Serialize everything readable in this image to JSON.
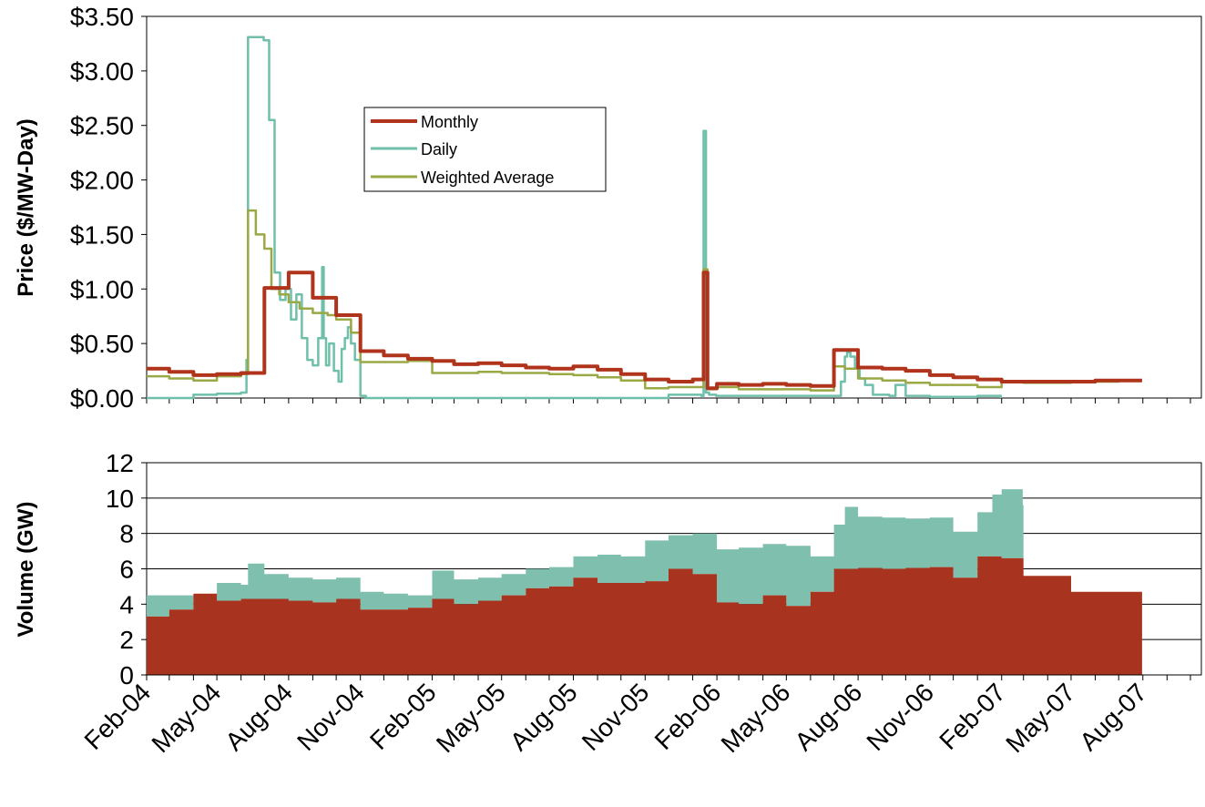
{
  "chart_data": [
    {
      "type": "line",
      "title": "",
      "xlabel": "",
      "ylabel": "Price ($/MW-Day)",
      "ylim": [
        0,
        3.5
      ],
      "yticks": [
        "$0.00",
        "$0.50",
        "$1.00",
        "$1.50",
        "$2.00",
        "$2.50",
        "$3.00",
        "$3.50"
      ],
      "xlim": [
        "2004-02-01",
        "2007-10-15"
      ],
      "grid": false,
      "legend": "upper-left-inside",
      "colors": {
        "Monthly": "#b0341c",
        "Daily": "#6fbfaa",
        "Weighted Average": "#9aa846"
      },
      "series": [
        {
          "name": "Monthly",
          "x": [
            "2004-02-01",
            "2004-03-01",
            "2004-04-01",
            "2004-05-01",
            "2004-06-01",
            "2004-07-01",
            "2004-08-01",
            "2004-09-01",
            "2004-10-01",
            "2004-11-01",
            "2004-12-01",
            "2005-01-01",
            "2005-02-01",
            "2005-03-01",
            "2005-04-01",
            "2005-05-01",
            "2005-06-01",
            "2005-07-01",
            "2005-08-01",
            "2005-09-01",
            "2005-10-01",
            "2005-11-01",
            "2005-12-01",
            "2006-01-01",
            "2006-01-15",
            "2006-01-20",
            "2006-02-01",
            "2006-03-01",
            "2006-04-01",
            "2006-05-01",
            "2006-06-01",
            "2006-07-01",
            "2006-08-01",
            "2006-09-01",
            "2006-10-01",
            "2006-11-01",
            "2006-12-01",
            "2007-01-01",
            "2007-02-01",
            "2007-03-01",
            "2007-04-01",
            "2007-05-01",
            "2007-06-01",
            "2007-07-01",
            "2007-07-31"
          ],
          "values": [
            0.27,
            0.24,
            0.21,
            0.22,
            0.23,
            1.01,
            1.15,
            0.92,
            0.76,
            0.43,
            0.39,
            0.36,
            0.34,
            0.31,
            0.32,
            0.3,
            0.28,
            0.27,
            0.29,
            0.26,
            0.22,
            0.17,
            0.15,
            0.17,
            1.15,
            0.09,
            0.13,
            0.12,
            0.13,
            0.12,
            0.11,
            0.44,
            0.28,
            0.27,
            0.25,
            0.21,
            0.19,
            0.17,
            0.15,
            0.15,
            0.15,
            0.15,
            0.16,
            0.16,
            0.16
          ]
        },
        {
          "name": "Daily",
          "x": [
            "2004-02-01",
            "2004-03-01",
            "2004-04-01",
            "2004-05-01",
            "2004-06-01",
            "2004-06-08",
            "2004-06-10",
            "2004-06-25",
            "2004-06-30",
            "2004-07-07",
            "2004-07-14",
            "2004-07-21",
            "2004-07-28",
            "2004-08-04",
            "2004-08-11",
            "2004-08-18",
            "2004-08-25",
            "2004-09-01",
            "2004-09-08",
            "2004-09-13",
            "2004-09-15",
            "2004-09-18",
            "2004-09-22",
            "2004-09-28",
            "2004-10-04",
            "2004-10-08",
            "2004-10-12",
            "2004-10-16",
            "2004-10-20",
            "2004-10-25",
            "2004-11-01",
            "2004-11-08",
            "2005-08-01",
            "2005-12-01",
            "2006-01-12",
            "2006-01-15",
            "2006-01-18",
            "2006-01-22",
            "2006-01-31",
            "2006-07-01",
            "2006-07-10",
            "2006-07-15",
            "2006-07-18",
            "2006-07-22",
            "2006-07-28",
            "2006-08-03",
            "2006-08-10",
            "2006-08-20",
            "2006-09-10",
            "2006-09-18",
            "2006-10-01",
            "2006-11-01",
            "2007-01-01",
            "2007-01-31"
          ],
          "values": [
            0.0,
            0.0,
            0.03,
            0.04,
            0.05,
            0.35,
            3.31,
            3.31,
            3.28,
            2.55,
            1.15,
            0.9,
            1.0,
            0.72,
            0.95,
            0.55,
            0.35,
            0.3,
            0.55,
            1.2,
            0.55,
            0.3,
            0.5,
            0.25,
            0.15,
            0.45,
            0.55,
            0.65,
            0.5,
            0.35,
            0.02,
            0.0,
            0.0,
            0.03,
            0.02,
            2.45,
            0.05,
            0.03,
            0.02,
            0.02,
            0.15,
            0.38,
            0.42,
            0.38,
            0.28,
            0.18,
            0.12,
            0.03,
            0.02,
            0.12,
            0.02,
            0.01,
            0.02,
            0.0
          ]
        },
        {
          "name": "Weighted Average",
          "x": [
            "2004-02-01",
            "2004-03-01",
            "2004-04-01",
            "2004-05-01",
            "2004-06-01",
            "2004-06-10",
            "2004-06-20",
            "2004-07-01",
            "2004-07-10",
            "2004-07-20",
            "2004-08-01",
            "2004-08-15",
            "2004-09-01",
            "2004-09-20",
            "2004-10-01",
            "2004-10-20",
            "2004-11-01",
            "2004-12-01",
            "2005-01-01",
            "2005-02-01",
            "2005-03-01",
            "2005-04-01",
            "2005-05-01",
            "2005-06-01",
            "2005-07-01",
            "2005-08-01",
            "2005-09-01",
            "2005-10-01",
            "2005-11-01",
            "2005-12-01",
            "2006-01-15",
            "2006-01-20",
            "2006-02-01",
            "2006-03-01",
            "2006-04-01",
            "2006-05-01",
            "2006-06-01",
            "2006-07-01",
            "2006-07-15",
            "2006-08-01",
            "2006-09-01",
            "2006-10-01",
            "2006-11-01",
            "2006-12-01",
            "2007-01-01",
            "2007-02-01",
            "2007-03-01",
            "2007-04-01",
            "2007-05-01",
            "2007-06-01",
            "2007-07-01",
            "2007-07-31"
          ],
          "values": [
            0.2,
            0.18,
            0.16,
            0.2,
            0.22,
            1.72,
            1.5,
            1.37,
            1.0,
            0.95,
            0.88,
            0.82,
            0.78,
            0.76,
            0.72,
            0.6,
            0.33,
            0.33,
            0.34,
            0.23,
            0.23,
            0.24,
            0.23,
            0.23,
            0.22,
            0.21,
            0.19,
            0.16,
            0.09,
            0.1,
            1.18,
            0.08,
            0.1,
            0.08,
            0.08,
            0.08,
            0.07,
            0.29,
            0.27,
            0.18,
            0.16,
            0.14,
            0.12,
            0.12,
            0.1,
            0.15,
            0.14,
            0.14,
            0.15,
            0.15,
            0.16,
            0.16
          ]
        }
      ]
    },
    {
      "type": "area",
      "title": "",
      "xlabel": "",
      "ylabel": "Volume (GW)",
      "ylim": [
        0,
        12
      ],
      "yticks": [
        "0",
        "2",
        "4",
        "6",
        "8",
        "10",
        "12"
      ],
      "xlim": [
        "2004-02-01",
        "2007-10-15"
      ],
      "grid": true,
      "stacked": true,
      "colors": {
        "Monthly": "#a8341f",
        "Daily": "#7fbfae"
      },
      "series": [
        {
          "name": "Monthly",
          "x": [
            "2004-02-01",
            "2004-03-01",
            "2004-04-01",
            "2004-05-01",
            "2004-06-01",
            "2004-07-01",
            "2004-08-01",
            "2004-09-01",
            "2004-10-01",
            "2004-11-01",
            "2004-12-01",
            "2005-01-01",
            "2005-02-01",
            "2005-03-01",
            "2005-04-01",
            "2005-05-01",
            "2005-06-01",
            "2005-07-01",
            "2005-08-01",
            "2005-09-01",
            "2005-10-01",
            "2005-11-01",
            "2005-12-01",
            "2006-01-01",
            "2006-02-01",
            "2006-03-01",
            "2006-04-01",
            "2006-05-01",
            "2006-06-01",
            "2006-07-01",
            "2006-08-01",
            "2006-09-01",
            "2006-10-01",
            "2006-11-01",
            "2006-12-01",
            "2007-01-01",
            "2007-02-01",
            "2007-03-01",
            "2007-04-01",
            "2007-05-01",
            "2007-06-01",
            "2007-07-01",
            "2007-07-31"
          ],
          "values": [
            3.3,
            3.7,
            4.6,
            4.2,
            4.3,
            4.3,
            4.2,
            4.1,
            4.3,
            3.7,
            3.7,
            3.8,
            4.3,
            4.0,
            4.2,
            4.5,
            4.9,
            5.0,
            5.5,
            5.2,
            5.2,
            5.3,
            6.0,
            5.7,
            4.1,
            4.0,
            4.5,
            3.9,
            4.7,
            6.0,
            6.05,
            6.0,
            6.05,
            6.1,
            5.5,
            6.7,
            6.6,
            5.6,
            5.6,
            4.7,
            4.7,
            4.7,
            4.7
          ]
        },
        {
          "name": "Daily",
          "x": [
            "2004-02-01",
            "2004-03-01",
            "2004-04-01",
            "2004-05-01",
            "2004-06-01",
            "2004-06-10",
            "2004-07-01",
            "2004-08-01",
            "2004-09-01",
            "2004-10-01",
            "2004-11-01",
            "2004-12-01",
            "2005-01-01",
            "2005-02-01",
            "2005-03-01",
            "2005-04-01",
            "2005-05-01",
            "2005-06-01",
            "2005-07-01",
            "2005-08-01",
            "2005-09-01",
            "2005-10-01",
            "2005-11-01",
            "2005-12-01",
            "2006-01-01",
            "2006-02-01",
            "2006-03-01",
            "2006-04-01",
            "2006-05-01",
            "2006-06-01",
            "2006-07-01",
            "2006-07-15",
            "2006-08-01",
            "2006-09-01",
            "2006-10-01",
            "2006-11-01",
            "2006-12-01",
            "2007-01-01",
            "2007-01-20",
            "2007-02-01",
            "2007-02-28",
            "2007-03-01",
            "2007-07-31"
          ],
          "values": [
            1.2,
            0.8,
            0.0,
            1.0,
            0.8,
            2.0,
            1.4,
            1.3,
            1.3,
            1.2,
            1.0,
            0.9,
            0.7,
            1.6,
            1.4,
            1.3,
            1.2,
            1.1,
            1.1,
            1.2,
            1.6,
            1.5,
            2.3,
            1.9,
            2.3,
            3.0,
            3.2,
            2.9,
            3.4,
            2.0,
            2.5,
            3.5,
            2.9,
            2.9,
            2.8,
            2.8,
            2.6,
            2.5,
            3.5,
            3.9,
            3.0,
            0.0,
            0.0
          ]
        }
      ]
    }
  ],
  "xticks": [
    "Feb-04",
    "May-04",
    "Aug-04",
    "Nov-04",
    "Feb-05",
    "May-05",
    "Aug-05",
    "Nov-05",
    "Feb-06",
    "May-06",
    "Aug-06",
    "Nov-06",
    "Feb-07",
    "May-07",
    "Aug-07"
  ],
  "legend": {
    "items": [
      "Monthly",
      "Daily",
      "Weighted Average"
    ]
  }
}
